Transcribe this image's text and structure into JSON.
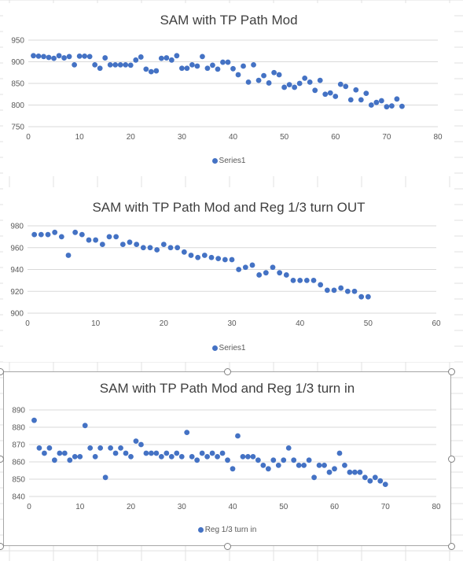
{
  "chart_data": [
    {
      "type": "scatter",
      "title": "SAM with TP Path Mod",
      "legend": "Series1",
      "legend_position": "bottom",
      "gridlines": "horizontal",
      "xlim": [
        0,
        80
      ],
      "ylim": [
        750,
        950
      ],
      "xticks": [
        0,
        10,
        20,
        30,
        40,
        50,
        60,
        70,
        80
      ],
      "yticks": [
        750,
        800,
        850,
        900,
        950
      ],
      "series": [
        {
          "name": "Series1",
          "color": "#4472c4",
          "x": [
            1,
            2,
            3,
            4,
            5,
            6,
            7,
            8,
            9,
            10,
            11,
            12,
            13,
            14,
            15,
            16,
            17,
            18,
            19,
            20,
            21,
            22,
            23,
            24,
            25,
            26,
            27,
            28,
            29,
            30,
            31,
            32,
            33,
            34,
            35,
            36,
            37,
            38,
            39,
            40,
            41,
            42,
            43,
            44,
            45,
            46,
            47,
            48,
            49,
            50,
            51,
            52,
            53,
            54,
            55,
            56,
            57,
            58,
            59,
            60,
            61,
            62,
            63,
            64,
            65,
            66,
            67,
            68,
            69,
            70,
            71,
            72,
            73
          ],
          "y": [
            914,
            913,
            912,
            910,
            908,
            914,
            909,
            912,
            893,
            913,
            913,
            912,
            893,
            885,
            909,
            893,
            893,
            893,
            893,
            892,
            904,
            911,
            883,
            877,
            879,
            908,
            909,
            904,
            914,
            885,
            885,
            893,
            890,
            912,
            885,
            892,
            883,
            899,
            899,
            884,
            870,
            890,
            853,
            893,
            857,
            868,
            851,
            875,
            870,
            841,
            847,
            841,
            850,
            862,
            853,
            834,
            857,
            825,
            828,
            820,
            848,
            843,
            812,
            835,
            812,
            827,
            800,
            806,
            810,
            796,
            798,
            814,
            797
          ]
        }
      ]
    },
    {
      "type": "scatter",
      "title": "SAM with TP Path Mod and Reg 1/3 turn OUT",
      "legend": "Series1",
      "legend_position": "bottom",
      "gridlines": "horizontal",
      "xlim": [
        0,
        60
      ],
      "ylim": [
        900,
        980
      ],
      "xticks": [
        0,
        10,
        20,
        30,
        40,
        50,
        60
      ],
      "yticks": [
        900,
        920,
        940,
        960,
        980
      ],
      "series": [
        {
          "name": "Series1",
          "color": "#4472c4",
          "x": [
            1,
            2,
            3,
            4,
            5,
            6,
            7,
            8,
            9,
            10,
            11,
            12,
            13,
            14,
            15,
            16,
            17,
            18,
            19,
            20,
            21,
            22,
            23,
            24,
            25,
            26,
            27,
            28,
            29,
            30,
            31,
            32,
            33,
            34,
            35,
            36,
            37,
            38,
            39,
            40,
            41,
            42,
            43,
            44,
            45,
            46,
            47,
            48,
            49,
            50
          ],
          "y": [
            972,
            972,
            972,
            974,
            970,
            953,
            974,
            972,
            967,
            967,
            963,
            970,
            970,
            963,
            965,
            963,
            960,
            960,
            958,
            963,
            960,
            960,
            956,
            953,
            951,
            953,
            951,
            950,
            949,
            949,
            940,
            942,
            944,
            935,
            937,
            942,
            937,
            935,
            930,
            930,
            930,
            930,
            926,
            921,
            921,
            923,
            920,
            920,
            915,
            915
          ]
        }
      ]
    },
    {
      "type": "scatter",
      "title": "SAM with TP Path Mod and Reg 1/3 turn in",
      "legend": "Reg 1/3 turn in",
      "legend_position": "bottom",
      "gridlines": "horizontal",
      "xlim": [
        0,
        80
      ],
      "ylim": [
        840,
        890
      ],
      "xticks": [
        0,
        10,
        20,
        30,
        40,
        50,
        60,
        70,
        80
      ],
      "yticks": [
        840,
        850,
        860,
        870,
        880,
        890
      ],
      "series": [
        {
          "name": "Reg 1/3 turn in",
          "color": "#4472c4",
          "x": [
            1,
            2,
            3,
            4,
            5,
            6,
            7,
            8,
            9,
            10,
            11,
            12,
            13,
            14,
            15,
            16,
            17,
            18,
            19,
            20,
            21,
            22,
            23,
            24,
            25,
            26,
            27,
            28,
            29,
            30,
            31,
            32,
            33,
            34,
            35,
            36,
            37,
            38,
            39,
            40,
            41,
            42,
            43,
            44,
            45,
            46,
            47,
            48,
            49,
            50,
            51,
            52,
            53,
            54,
            55,
            56,
            57,
            58,
            59,
            60,
            61,
            62,
            63,
            64,
            65,
            66,
            67,
            68,
            69,
            70
          ],
          "y": [
            884,
            868,
            865,
            868,
            861,
            865,
            865,
            861,
            863,
            863,
            881,
            868,
            863,
            868,
            851,
            868,
            865,
            868,
            865,
            863,
            872,
            870,
            865,
            865,
            865,
            863,
            865,
            863,
            865,
            863,
            877,
            863,
            861,
            865,
            863,
            865,
            863,
            865,
            861,
            856,
            875,
            863,
            863,
            863,
            861,
            858,
            856,
            861,
            858,
            861,
            868,
            861,
            858,
            858,
            861,
            851,
            858,
            858,
            854,
            856,
            865,
            858,
            854,
            854,
            854,
            851,
            849,
            851,
            849,
            847
          ]
        }
      ]
    }
  ]
}
